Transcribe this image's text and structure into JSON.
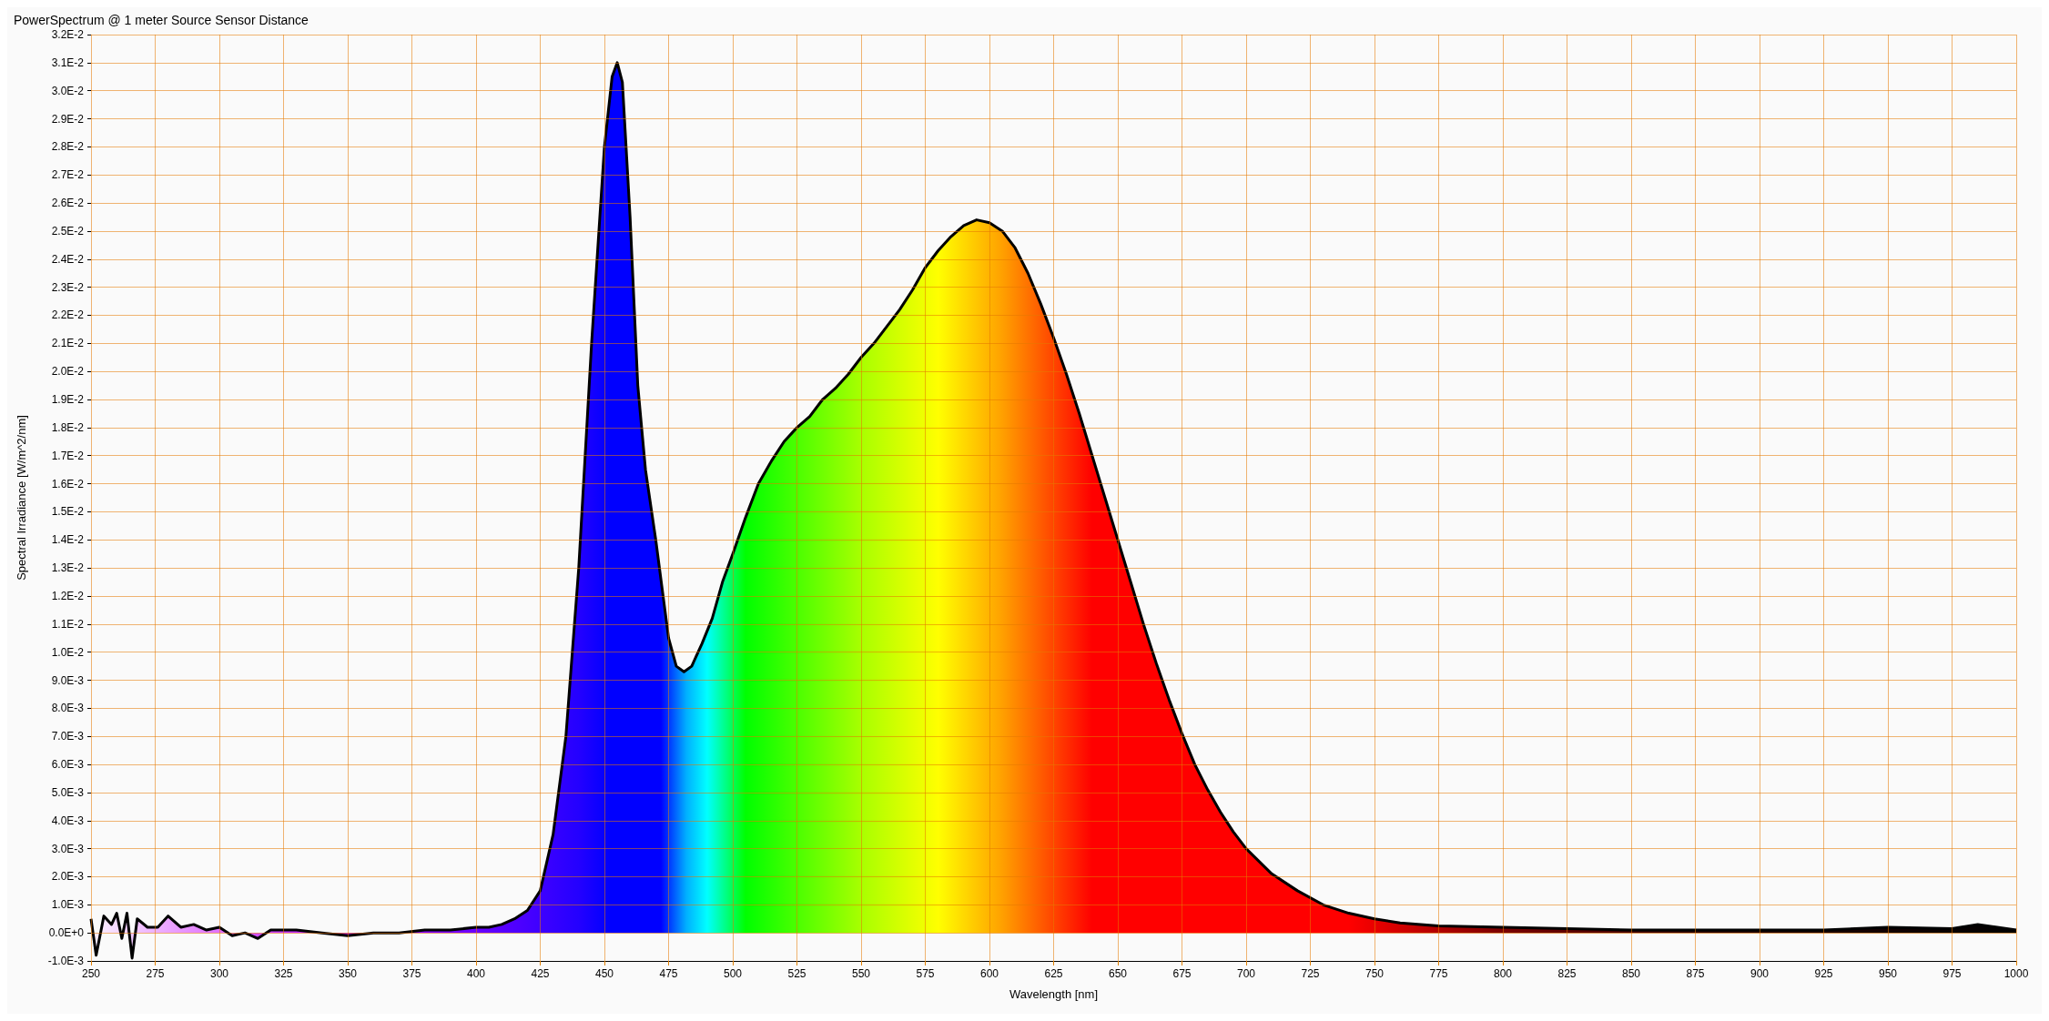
{
  "chart_data": {
    "type": "area",
    "title": "PowerSpectrum @ 1 meter Source Sensor Distance",
    "xlabel": "Wavelength [nm]",
    "ylabel": "Spectral Irradiance [W/m^2/nm]",
    "x": [
      250,
      252,
      255,
      258,
      260,
      262,
      264,
      266,
      268,
      272,
      276,
      280,
      285,
      290,
      295,
      300,
      305,
      310,
      315,
      320,
      330,
      340,
      350,
      360,
      370,
      380,
      390,
      400,
      405,
      410,
      415,
      420,
      425,
      430,
      435,
      440,
      445,
      450,
      453,
      455,
      457,
      460,
      463,
      466,
      470,
      475,
      478,
      481,
      484,
      488,
      492,
      496,
      500,
      505,
      510,
      515,
      520,
      525,
      530,
      535,
      540,
      545,
      550,
      555,
      560,
      565,
      570,
      575,
      580,
      585,
      590,
      595,
      600,
      605,
      610,
      615,
      620,
      625,
      630,
      635,
      640,
      645,
      650,
      655,
      660,
      665,
      670,
      675,
      680,
      685,
      690,
      695,
      700,
      710,
      720,
      730,
      740,
      750,
      760,
      775,
      800,
      825,
      850,
      875,
      900,
      925,
      950,
      975,
      985,
      1000
    ],
    "series": [
      {
        "color": "#000000",
        "values": [
          0.0005,
          -0.0008,
          0.0006,
          0.0003,
          0.0007,
          -0.0002,
          0.0007,
          -0.0009,
          0.0005,
          0.0002,
          0.0002,
          0.0006,
          0.0002,
          0.0003,
          0.0001,
          0.0002,
          -0.0001,
          0.0,
          -0.0002,
          0.0001,
          0.0001,
          0.0,
          -0.0001,
          0.0,
          0.0,
          0.0001,
          0.0001,
          0.0002,
          0.0002,
          0.0003,
          0.0005,
          0.0008,
          0.0015,
          0.0035,
          0.007,
          0.013,
          0.021,
          0.028,
          0.0305,
          0.031,
          0.0303,
          0.0255,
          0.0195,
          0.0165,
          0.014,
          0.0105,
          0.0095,
          0.0093,
          0.0095,
          0.0103,
          0.0112,
          0.0125,
          0.0135,
          0.0148,
          0.016,
          0.0168,
          0.0175,
          0.018,
          0.0184,
          0.019,
          0.0194,
          0.0199,
          0.0205,
          0.021,
          0.0216,
          0.0222,
          0.0229,
          0.0237,
          0.0243,
          0.0248,
          0.0252,
          0.0254,
          0.0253,
          0.025,
          0.0244,
          0.0235,
          0.0224,
          0.0212,
          0.0199,
          0.0185,
          0.017,
          0.0155,
          0.014,
          0.0125,
          0.011,
          0.0096,
          0.0083,
          0.0071,
          0.006,
          0.0051,
          0.0043,
          0.0036,
          0.003,
          0.0021,
          0.0015,
          0.001,
          0.0007,
          0.0005,
          0.00035,
          0.00025,
          0.0002,
          0.00015,
          0.0001,
          0.0001,
          0.0001,
          0.0001,
          0.0002,
          0.00015,
          0.0003,
          0.0001
        ]
      }
    ],
    "xlim": [
      250,
      1000
    ],
    "xticks": [
      250,
      275,
      300,
      325,
      350,
      375,
      400,
      425,
      450,
      475,
      500,
      525,
      550,
      575,
      600,
      625,
      650,
      675,
      700,
      725,
      750,
      775,
      800,
      825,
      850,
      875,
      900,
      925,
      950,
      975,
      1000
    ],
    "ylim": [
      -0.001,
      0.032
    ],
    "yticks": [
      {
        "value": -0.001,
        "label": "-1.0E-3"
      },
      {
        "value": 0,
        "label": "0.0E+0"
      },
      {
        "value": 0.001,
        "label": "1.0E-3"
      },
      {
        "value": 0.002,
        "label": "2.0E-3"
      },
      {
        "value": 0.003,
        "label": "3.0E-3"
      },
      {
        "value": 0.004,
        "label": "4.0E-3"
      },
      {
        "value": 0.005,
        "label": "5.0E-3"
      },
      {
        "value": 0.006,
        "label": "6.0E-3"
      },
      {
        "value": 0.007,
        "label": "7.0E-3"
      },
      {
        "value": 0.008,
        "label": "8.0E-3"
      },
      {
        "value": 0.009,
        "label": "9.0E-3"
      },
      {
        "value": 0.01,
        "label": "1.0E-2"
      },
      {
        "value": 0.011,
        "label": "1.1E-2"
      },
      {
        "value": 0.012,
        "label": "1.2E-2"
      },
      {
        "value": 0.013,
        "label": "1.3E-2"
      },
      {
        "value": 0.014,
        "label": "1.4E-2"
      },
      {
        "value": 0.015,
        "label": "1.5E-2"
      },
      {
        "value": 0.016,
        "label": "1.6E-2"
      },
      {
        "value": 0.017,
        "label": "1.7E-2"
      },
      {
        "value": 0.018,
        "label": "1.8E-2"
      },
      {
        "value": 0.019,
        "label": "1.9E-2"
      },
      {
        "value": 0.02,
        "label": "2.0E-2"
      },
      {
        "value": 0.021,
        "label": "2.1E-2"
      },
      {
        "value": 0.022,
        "label": "2.2E-2"
      },
      {
        "value": 0.023,
        "label": "2.3E-2"
      },
      {
        "value": 0.024,
        "label": "2.4E-2"
      },
      {
        "value": 0.025,
        "label": "2.5E-2"
      },
      {
        "value": 0.026,
        "label": "2.6E-2"
      },
      {
        "value": 0.027,
        "label": "2.7E-2"
      },
      {
        "value": 0.028,
        "label": "2.8E-2"
      },
      {
        "value": 0.029,
        "label": "2.9E-2"
      },
      {
        "value": 0.03,
        "label": "3.0E-2"
      },
      {
        "value": 0.031,
        "label": "3.1E-2"
      },
      {
        "value": 0.032,
        "label": "3.2E-2"
      }
    ],
    "grid": true
  }
}
